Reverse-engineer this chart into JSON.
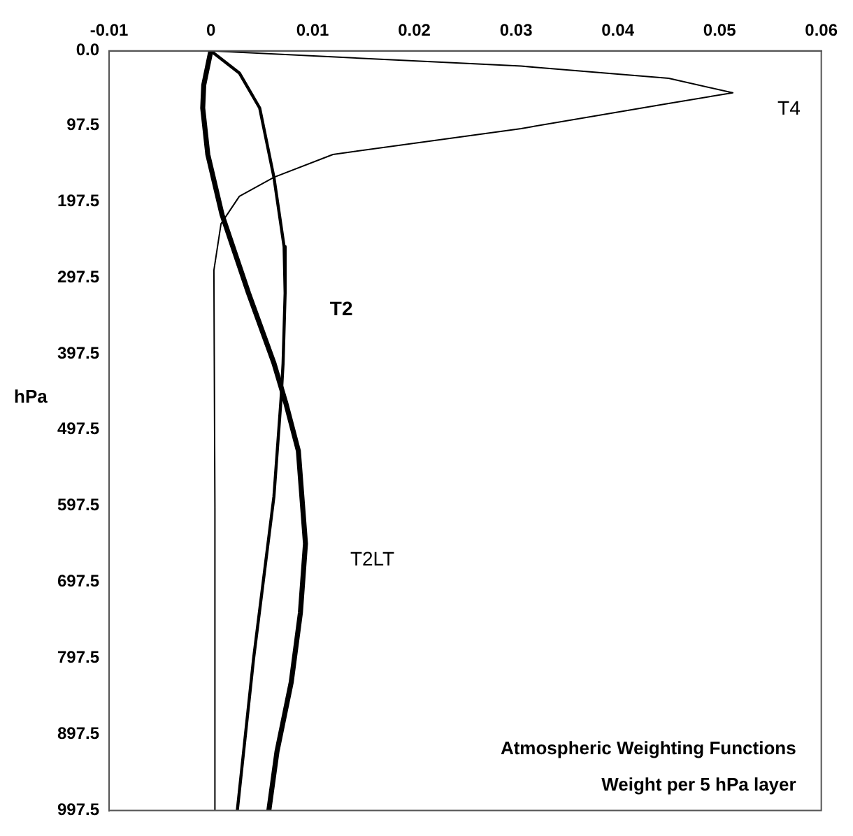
{
  "chart_data": {
    "type": "line",
    "ylabel": "hPa",
    "annotations": [
      "Atmospheric Weighting Functions",
      "Weight per 5 hPa layer"
    ],
    "xlim": [
      -0.01,
      0.06
    ],
    "xticks": [
      -0.01,
      0,
      0.01,
      0.02,
      0.03,
      0.04,
      0.05,
      0.06
    ],
    "ylim": [
      997.5,
      0
    ],
    "yticks": [
      {
        "value": 0,
        "label": "0.0"
      },
      97.5,
      197.5,
      297.5,
      397.5,
      497.5,
      597.5,
      697.5,
      797.5,
      897.5,
      997.5
    ],
    "grid": false,
    "legend": false,
    "marker": "none",
    "line_style": "solid",
    "series": [
      {
        "name": "T4",
        "color": "#000000",
        "x": [
          0,
          0.0305,
          0.045,
          0.0513,
          0.045,
          0.0305,
          0.012,
          0.0062,
          0.0028,
          0.001,
          0.0003,
          0.0004,
          0.0004
        ],
        "values": [
          0,
          20,
          36,
          55,
          69,
          102,
          136,
          166,
          191,
          227,
          288,
          600,
          997.5
        ]
      },
      {
        "name": "T2",
        "color": "#000000",
        "x": [
          0,
          0.0028,
          0.0048,
          0.0062,
          0.0072,
          0.0073,
          0.0071,
          0.0069,
          0.0062,
          0.0042,
          0.0026
        ],
        "values": [
          0,
          29,
          75,
          166,
          257,
          318,
          410,
          457,
          585,
          798,
          997.5
        ]
      },
      {
        "name": "T2LT",
        "color": "#000000",
        "x": [
          0,
          -0.0007,
          -0.0008,
          -0.0003,
          0.0011,
          0.0037,
          0.0062,
          0.0074,
          0.0086,
          0.0093,
          0.0088,
          0.0079,
          0.0065,
          0.0057
        ],
        "values": [
          0,
          45,
          75,
          136,
          215,
          318,
          410,
          464,
          525,
          647,
          738,
          829,
          920,
          997.5
        ]
      }
    ]
  }
}
